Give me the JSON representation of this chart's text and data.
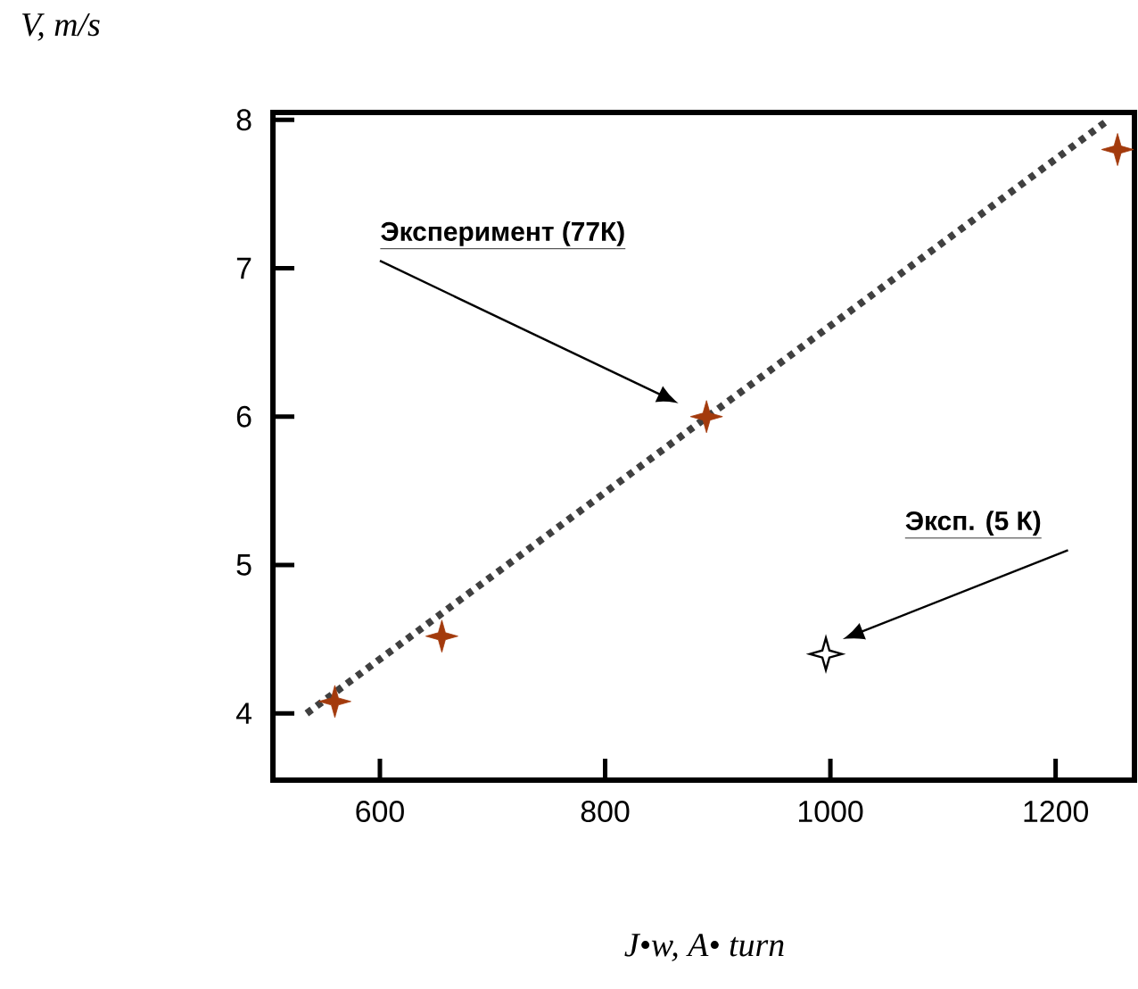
{
  "chart_data": {
    "type": "scatter",
    "xlabel": "J•w, A• turn",
    "ylabel": "V, m/s",
    "xlim": [
      505,
      1270
    ],
    "ylim": [
      3.55,
      8.05
    ],
    "xticks": [
      600,
      800,
      1000,
      1200
    ],
    "yticks": [
      4,
      5,
      6,
      7,
      8
    ],
    "grid": false,
    "marker": "star",
    "series": [
      {
        "type": "line",
        "x": [
          535,
          1247
        ],
        "values": [
          4.0,
          8.0
        ],
        "color": "#404040",
        "line_style": "dotted",
        "marker": "none"
      },
      {
        "x": [
          560,
          655,
          890,
          1255
        ],
        "values": [
          4.08,
          4.52,
          6.0,
          7.8
        ],
        "color": "#a33a0c"
      },
      {
        "x": [
          996
        ],
        "values": [
          4.4
        ],
        "color": "#ffffff"
      }
    ],
    "annotations": [
      "Эксперимент (77К)",
      "Эксп. (5 К)"
    ]
  }
}
